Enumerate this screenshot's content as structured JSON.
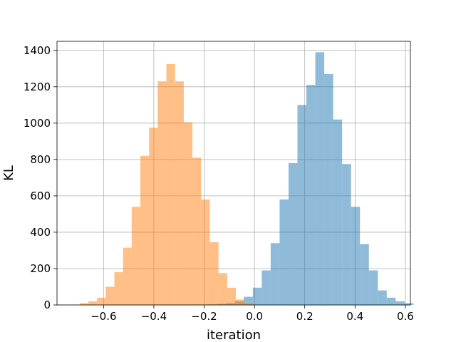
{
  "chart_data": {
    "type": "histogram",
    "xlabel": "iteration",
    "ylabel": "KL",
    "xlim": [
      -0.785,
      0.62
    ],
    "ylim": [
      0,
      1450
    ],
    "grid": true,
    "xticks": [
      -0.6,
      -0.4,
      -0.2,
      0.0,
      0.2,
      0.4,
      0.6
    ],
    "xtick_labels": [
      "−0.6",
      "−0.4",
      "−0.2",
      "0.0",
      "0.2",
      "0.4",
      "0.6"
    ],
    "yticks": [
      0,
      200,
      400,
      600,
      800,
      1000,
      1200,
      1400
    ],
    "ytick_labels": [
      "0",
      "200",
      "400",
      "600",
      "800",
      "1000",
      "1200",
      "1400"
    ],
    "series": [
      {
        "color": "#1f77b4",
        "alpha": 0.5,
        "bin_start": -0.255,
        "bin_width": 0.0355,
        "counts": [
          1,
          2,
          3,
          6,
          10,
          20,
          45,
          95,
          190,
          340,
          580,
          780,
          1100,
          1210,
          1390,
          1270,
          1020,
          775,
          540,
          335,
          190,
          80,
          40,
          20,
          10
        ]
      },
      {
        "color": "#ff7f0e",
        "alpha": 0.5,
        "bin_start": -0.695,
        "bin_width": 0.0345,
        "counts": [
          10,
          20,
          40,
          100,
          180,
          315,
          540,
          820,
          975,
          1230,
          1325,
          1230,
          1005,
          810,
          580,
          345,
          175,
          95,
          30,
          10
        ]
      }
    ]
  }
}
